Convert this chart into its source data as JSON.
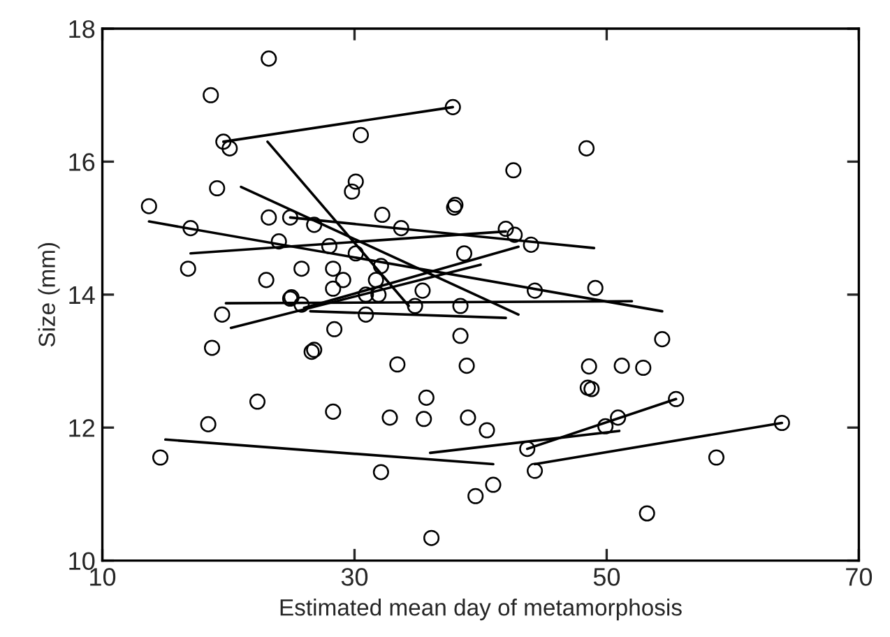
{
  "chart_data": {
    "type": "scatter",
    "xlabel": "Estimated mean day of metamorphosis",
    "ylabel": "Size (mm)",
    "xlim": [
      10,
      70
    ],
    "ylim": [
      10,
      18
    ],
    "xticks": [
      10,
      30,
      50,
      70
    ],
    "yticks": [
      10,
      12,
      14,
      16,
      18
    ],
    "grid": false,
    "legend": false,
    "series": [
      {
        "marker": "circle",
        "color": "#000000",
        "x": [
          23.2,
          18.6,
          19.6,
          20.1,
          19.1,
          13.7,
          17.0,
          23.2,
          24.9,
          26.8,
          24.0,
          16.8,
          25.8,
          23.0,
          25.0,
          37.8,
          30.5,
          48.4,
          42.6,
          30.1,
          29.8,
          38.0,
          37.9,
          32.2,
          33.7,
          42.0,
          42.7,
          44.0,
          28.0,
          38.7,
          30.1,
          32.1,
          28.3,
          29.1,
          31.7,
          44.3,
          28.3,
          35.4,
          30.9,
          31.9,
          34.8,
          38.4,
          30.9,
          28.4,
          38.4,
          26.6,
          26.8,
          33.4,
          38.9,
          48.5,
          35.7,
          28.3,
          32.8,
          35.5,
          39.0,
          40.5,
          43.7,
          32.1,
          44.3,
          41.0,
          39.6,
          36.1,
          24.9,
          25.8,
          19.5,
          18.7,
          22.3,
          18.4,
          14.6,
          49.1,
          54.4,
          48.6,
          51.2,
          52.9,
          48.8,
          55.5,
          50.9,
          49.9,
          63.9,
          58.7,
          53.2
        ],
        "values": [
          17.55,
          17.0,
          16.3,
          16.2,
          15.6,
          15.33,
          15.0,
          15.16,
          15.16,
          15.05,
          14.8,
          14.39,
          14.39,
          14.22,
          13.96,
          16.82,
          16.4,
          16.2,
          15.87,
          15.7,
          15.55,
          15.35,
          15.31,
          15.2,
          15.0,
          14.99,
          14.9,
          14.75,
          14.73,
          14.62,
          14.62,
          14.43,
          14.39,
          14.22,
          14.22,
          14.06,
          14.09,
          14.06,
          14.0,
          14.0,
          13.83,
          13.83,
          13.7,
          13.48,
          13.38,
          13.14,
          13.17,
          12.95,
          12.93,
          12.6,
          12.45,
          12.24,
          12.15,
          12.13,
          12.15,
          11.96,
          11.68,
          11.33,
          11.35,
          11.14,
          10.97,
          10.34,
          13.94,
          13.85,
          13.7,
          13.2,
          12.39,
          12.05,
          11.55,
          14.1,
          13.33,
          12.92,
          12.93,
          12.9,
          12.58,
          12.43,
          12.15,
          12.02,
          12.07,
          11.55,
          10.71
        ]
      },
      {
        "type": "line",
        "color": "#000000",
        "x": [
          19.6,
          37.8
        ],
        "values": [
          16.3,
          16.82
        ]
      },
      {
        "type": "line",
        "color": "#000000",
        "x": [
          23.1,
          34.3
        ],
        "values": [
          16.3,
          13.83
        ]
      },
      {
        "type": "line",
        "color": "#000000",
        "x": [
          21.0,
          43.0
        ],
        "values": [
          15.62,
          13.7
        ]
      },
      {
        "type": "line",
        "color": "#000000",
        "x": [
          13.7,
          54.4
        ],
        "values": [
          15.1,
          13.75
        ]
      },
      {
        "type": "line",
        "color": "#000000",
        "x": [
          24.9,
          49.0
        ],
        "values": [
          15.16,
          14.7
        ]
      },
      {
        "type": "line",
        "color": "#000000",
        "x": [
          17.0,
          42.0
        ],
        "values": [
          14.62,
          14.95
        ]
      },
      {
        "type": "line",
        "color": "#000000",
        "x": [
          19.8,
          52.0
        ],
        "values": [
          13.87,
          13.9
        ]
      },
      {
        "type": "line",
        "color": "#000000",
        "x": [
          20.2,
          40.0
        ],
        "values": [
          13.5,
          14.45
        ]
      },
      {
        "type": "line",
        "color": "#000000",
        "x": [
          26.5,
          42.0
        ],
        "values": [
          13.75,
          13.65
        ]
      },
      {
        "type": "line",
        "color": "#000000",
        "x": [
          26.0,
          43.0
        ],
        "values": [
          13.8,
          14.72
        ]
      },
      {
        "type": "line",
        "color": "#000000",
        "x": [
          15.0,
          41.0
        ],
        "values": [
          11.82,
          11.45
        ]
      },
      {
        "type": "line",
        "color": "#000000",
        "x": [
          36.0,
          51.0
        ],
        "values": [
          11.62,
          11.95
        ]
      },
      {
        "type": "line",
        "color": "#000000",
        "x": [
          43.7,
          55.5
        ],
        "values": [
          11.68,
          12.43
        ]
      },
      {
        "type": "line",
        "color": "#000000",
        "x": [
          44.3,
          63.9
        ],
        "values": [
          11.45,
          12.07
        ]
      }
    ]
  }
}
